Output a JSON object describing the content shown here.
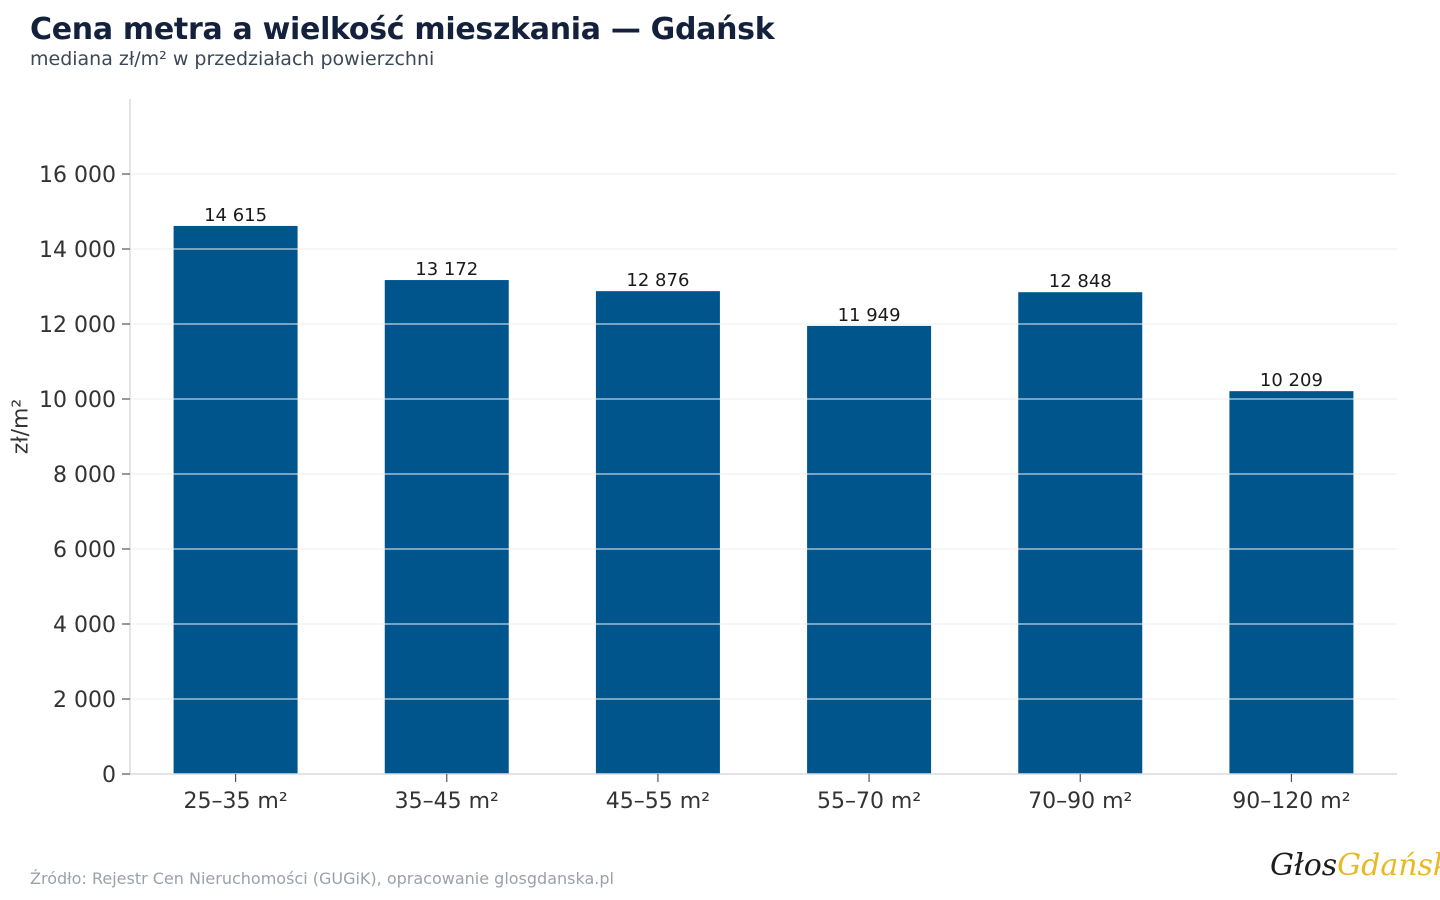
{
  "header": {
    "title": "Cena metra a wielkość mieszkania — Gdańsk",
    "subtitle": "mediana zł/m² w przedziałach powierzchni"
  },
  "footer": {
    "source": "Źródło: Rejestr Cen Nieruchomości (GUGiK), opracowanie glosgdanska.pl",
    "logo_part1": "Głos",
    "logo_part2": "Gdańska"
  },
  "colors": {
    "bar": "#00558c",
    "grid": "#e3e6ea",
    "axis_text": "#333333",
    "logo_accent": "#e8b923"
  },
  "chart_data": {
    "type": "bar",
    "title": "Cena metra a wielkość mieszkania — Gdańsk",
    "subtitle": "mediana zł/m² w przedziałach powierzchni",
    "xlabel": "",
    "ylabel": "zł/m²",
    "categories": [
      "25–35 m²",
      "35–45 m²",
      "45–55 m²",
      "55–70 m²",
      "70–90 m²",
      "90–120 m²"
    ],
    "values": [
      14615,
      13172,
      12876,
      11949,
      12848,
      10209
    ],
    "value_labels": [
      "14 615",
      "13 172",
      "12 876",
      "11 949",
      "12 848",
      "10 209"
    ],
    "yticks": [
      0,
      2000,
      4000,
      6000,
      8000,
      10000,
      12000,
      14000,
      16000
    ],
    "ytick_labels": [
      "0",
      "2 000",
      "4 000",
      "6 000",
      "8 000",
      "10 000",
      "12 000",
      "14 000",
      "16 000"
    ],
    "ylim": [
      0,
      17200
    ],
    "grid": true
  }
}
